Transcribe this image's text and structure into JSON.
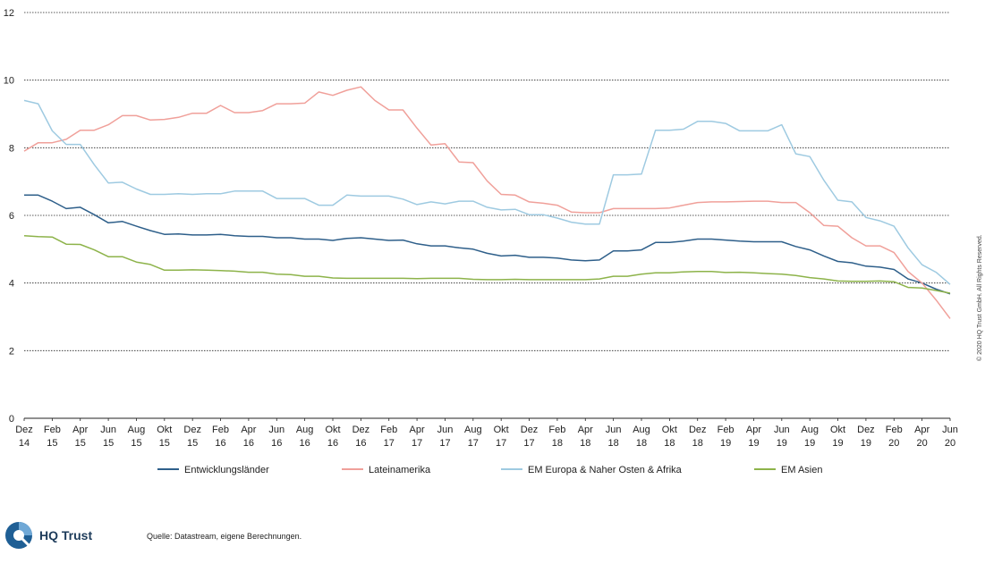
{
  "chart_data": {
    "type": "line",
    "ylim": [
      0,
      12
    ],
    "yticks": [
      "0",
      "2",
      "4",
      "6",
      "8",
      "10",
      "12"
    ],
    "grid": true,
    "legend_position": "bottom",
    "x_tick_labels": [
      [
        "Dez",
        "14"
      ],
      [
        "Feb",
        "15"
      ],
      [
        "Apr",
        "15"
      ],
      [
        "Jun",
        "15"
      ],
      [
        "Aug",
        "15"
      ],
      [
        "Okt",
        "15"
      ],
      [
        "Dez",
        "15"
      ],
      [
        "Feb",
        "16"
      ],
      [
        "Apr",
        "16"
      ],
      [
        "Jun",
        "16"
      ],
      [
        "Aug",
        "16"
      ],
      [
        "Okt",
        "16"
      ],
      [
        "Dez",
        "16"
      ],
      [
        "Feb",
        "17"
      ],
      [
        "Apr",
        "17"
      ],
      [
        "Jun",
        "17"
      ],
      [
        "Aug",
        "17"
      ],
      [
        "Okt",
        "17"
      ],
      [
        "Dez",
        "17"
      ],
      [
        "Feb",
        "18"
      ],
      [
        "Apr",
        "18"
      ],
      [
        "Jun",
        "18"
      ],
      [
        "Aug",
        "18"
      ],
      [
        "Okt",
        "18"
      ],
      [
        "Dez",
        "18"
      ],
      [
        "Feb",
        "19"
      ],
      [
        "Apr",
        "19"
      ],
      [
        "Jun",
        "19"
      ],
      [
        "Aug",
        "19"
      ],
      [
        "Okt",
        "19"
      ],
      [
        "Dez",
        "19"
      ],
      [
        "Feb",
        "20"
      ],
      [
        "Apr",
        "20"
      ],
      [
        "Jun",
        "20"
      ]
    ],
    "series": [
      {
        "name": "Entwicklungsländer",
        "color": "#2e5f8a",
        "values": [
          6.6,
          6.6,
          6.42,
          6.2,
          6.24,
          6.02,
          5.78,
          5.82,
          5.68,
          5.55,
          5.44,
          5.45,
          5.42,
          5.42,
          5.44,
          5.4,
          5.38,
          5.38,
          5.34,
          5.34,
          5.3,
          5.3,
          5.26,
          5.32,
          5.34,
          5.3,
          5.26,
          5.27,
          5.16,
          5.1,
          5.1,
          5.04,
          5.0,
          4.88,
          4.8,
          4.82,
          4.76,
          4.76,
          4.74,
          4.68,
          4.66,
          4.68,
          4.95,
          4.95,
          4.98,
          5.2,
          5.2,
          5.24,
          5.3,
          5.3,
          5.27,
          5.24,
          5.22,
          5.22,
          5.22,
          5.08,
          4.98,
          4.8,
          4.64,
          4.6,
          4.5,
          4.47,
          4.4,
          4.12,
          4.0,
          3.82,
          3.68
        ]
      },
      {
        "name": "Lateinamerika",
        "color": "#f0a09a",
        "values": [
          7.9,
          8.15,
          8.15,
          8.25,
          8.52,
          8.52,
          8.68,
          8.95,
          8.95,
          8.82,
          8.84,
          8.9,
          9.02,
          9.02,
          9.25,
          9.04,
          9.04,
          9.1,
          9.3,
          9.3,
          9.32,
          9.65,
          9.55,
          9.7,
          9.8,
          9.4,
          9.12,
          9.12,
          8.58,
          8.08,
          8.12,
          7.58,
          7.56,
          7.02,
          6.62,
          6.6,
          6.4,
          6.36,
          6.3,
          6.1,
          6.08,
          6.08,
          6.2,
          6.2,
          6.2,
          6.2,
          6.22,
          6.3,
          6.38,
          6.4,
          6.4,
          6.41,
          6.42,
          6.42,
          6.38,
          6.38,
          6.08,
          5.7,
          5.68,
          5.34,
          5.1,
          5.1,
          4.9,
          4.34,
          4.0,
          3.5,
          2.95
        ]
      },
      {
        "name": "EM Europa & Naher Osten & Afrika",
        "color": "#9ecae1",
        "values": [
          9.4,
          9.3,
          8.5,
          8.1,
          8.1,
          7.5,
          6.96,
          6.98,
          6.78,
          6.62,
          6.62,
          6.64,
          6.62,
          6.64,
          6.64,
          6.72,
          6.72,
          6.72,
          6.5,
          6.5,
          6.5,
          6.3,
          6.3,
          6.6,
          6.57,
          6.57,
          6.57,
          6.48,
          6.32,
          6.4,
          6.34,
          6.42,
          6.42,
          6.24,
          6.16,
          6.18,
          6.02,
          6.02,
          5.92,
          5.8,
          5.74,
          5.74,
          7.2,
          7.2,
          7.22,
          8.52,
          8.52,
          8.55,
          8.78,
          8.78,
          8.72,
          8.5,
          8.5,
          8.5,
          8.68,
          7.82,
          7.74,
          7.04,
          6.45,
          6.4,
          5.94,
          5.84,
          5.68,
          5.04,
          4.54,
          4.32,
          3.96
        ]
      },
      {
        "name": "EM Asien",
        "color": "#8db34a",
        "values": [
          5.4,
          5.37,
          5.36,
          5.15,
          5.14,
          4.98,
          4.78,
          4.78,
          4.62,
          4.55,
          4.38,
          4.38,
          4.39,
          4.38,
          4.37,
          4.35,
          4.32,
          4.32,
          4.26,
          4.25,
          4.2,
          4.2,
          4.15,
          4.14,
          4.14,
          4.14,
          4.14,
          4.14,
          4.13,
          4.14,
          4.14,
          4.14,
          4.11,
          4.1,
          4.1,
          4.11,
          4.1,
          4.1,
          4.1,
          4.1,
          4.1,
          4.12,
          4.2,
          4.2,
          4.26,
          4.3,
          4.3,
          4.33,
          4.34,
          4.34,
          4.31,
          4.32,
          4.3,
          4.28,
          4.26,
          4.22,
          4.16,
          4.12,
          4.06,
          4.05,
          4.05,
          4.06,
          4.04,
          3.87,
          3.85,
          3.78,
          3.7
        ]
      }
    ]
  },
  "copyright": "© 2020 HQ Trust GmbH. All Rights Reserved.",
  "brand_name": "HQ Trust",
  "source": "Quelle: Datastream, eigene Berechnungen."
}
